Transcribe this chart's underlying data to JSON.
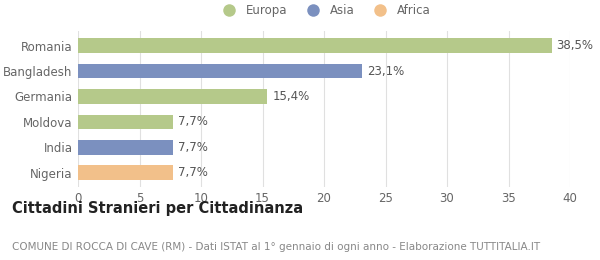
{
  "categories": [
    "Nigeria",
    "India",
    "Moldova",
    "Germania",
    "Bangladesh",
    "Romania"
  ],
  "values": [
    7.7,
    7.7,
    7.7,
    15.4,
    23.1,
    38.5
  ],
  "labels": [
    "7,7%",
    "7,7%",
    "7,7%",
    "15,4%",
    "23,1%",
    "38,5%"
  ],
  "bar_colors": [
    "#f2c08a",
    "#7b90bf",
    "#b5c98a",
    "#b5c98a",
    "#7b90bf",
    "#b5c98a"
  ],
  "legend_items": [
    {
      "label": "Europa",
      "color": "#b5c98a"
    },
    {
      "label": "Asia",
      "color": "#7b90bf"
    },
    {
      "label": "Africa",
      "color": "#f2c08a"
    }
  ],
  "xlim": [
    0,
    40
  ],
  "xticks": [
    0,
    5,
    10,
    15,
    20,
    25,
    30,
    35,
    40
  ],
  "title": "Cittadini Stranieri per Cittadinanza",
  "subtitle": "COMUNE DI ROCCA DI CAVE (RM) - Dati ISTAT al 1° gennaio di ogni anno - Elaborazione TUTTITALIA.IT",
  "background_color": "#ffffff",
  "grid_color": "#e0e0e0",
  "label_fontsize": 8.5,
  "tick_fontsize": 8.5,
  "title_fontsize": 10.5,
  "subtitle_fontsize": 7.5,
  "bar_height": 0.58
}
